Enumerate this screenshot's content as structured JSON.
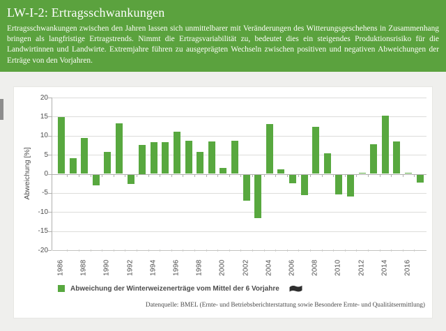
{
  "header": {
    "title": "LW-I-2: Ertragsschwankungen",
    "description": "Ertragsschwankungen zwischen den Jahren lassen sich unmittelbarer mit Veränderungen des Witterungsgeschehens in Zusammenhang bringen als langfristige Ertragstrends. Nimmt die Ertragsvariabilität zu, bedeutet dies ein steigendes Produktionsrisiko für die Landwirtinnen und Landwirte. Extremjahre führen zu ausgeprägten Wechseln zwischen positiven und negativen Abweichungen der Erträge von den Vorjahren."
  },
  "chart_data": {
    "type": "bar",
    "title": "",
    "ylabel": "Abweichung [%]",
    "ylim": [
      -20,
      20
    ],
    "ytick_step": 5,
    "grid": true,
    "legend_position": "bottom",
    "categories": [
      1986,
      1987,
      1988,
      1989,
      1990,
      1991,
      1992,
      1993,
      1994,
      1995,
      1996,
      1997,
      1998,
      1999,
      2000,
      2001,
      2002,
      2003,
      2004,
      2005,
      2006,
      2007,
      2008,
      2009,
      2010,
      2011,
      2012,
      2013,
      2014,
      2015,
      2016,
      2017
    ],
    "values": [
      14.8,
      4.2,
      9.4,
      -2.9,
      5.7,
      13.3,
      -2.4,
      7.5,
      8.4,
      8.4,
      11.1,
      8.7,
      5.8,
      8.5,
      1.5,
      8.6,
      -6.9,
      -11.4,
      13.0,
      1.2,
      -2.2,
      -5.4,
      12.3,
      5.4,
      -5.2,
      -5.7,
      0.2,
      7.7,
      15.2,
      8.5,
      0.2,
      -2.1
    ],
    "xtick_labels": [
      "1986",
      "1988",
      "1990",
      "1992",
      "1994",
      "1996",
      "1998",
      "2000",
      "2002",
      "2004",
      "2006",
      "2008",
      "2010",
      "2012",
      "2014",
      "2016"
    ],
    "series_name": "Abweichung der Winterweizenerträge vom Mittel der 6 Vorjahre",
    "bar_color": "#58a83f"
  },
  "legend": {
    "label": "Abweichung der Winterweizenerträge vom Mittel der 6 Vorjahre",
    "icon": "flag-icon",
    "swatch_color": "#58a83f"
  },
  "source": "Datenquelle: BMEL (Ernte- und Betriebsberichterstattung sowie Besondere Ernte- und Qualitätsermittlung)",
  "colors": {
    "header_green": "#5ba23e",
    "bar_green": "#58a83f",
    "page_background": "#efefed",
    "panel_background": "#ffffff",
    "side_tab_gray": "#8d8d8d"
  }
}
